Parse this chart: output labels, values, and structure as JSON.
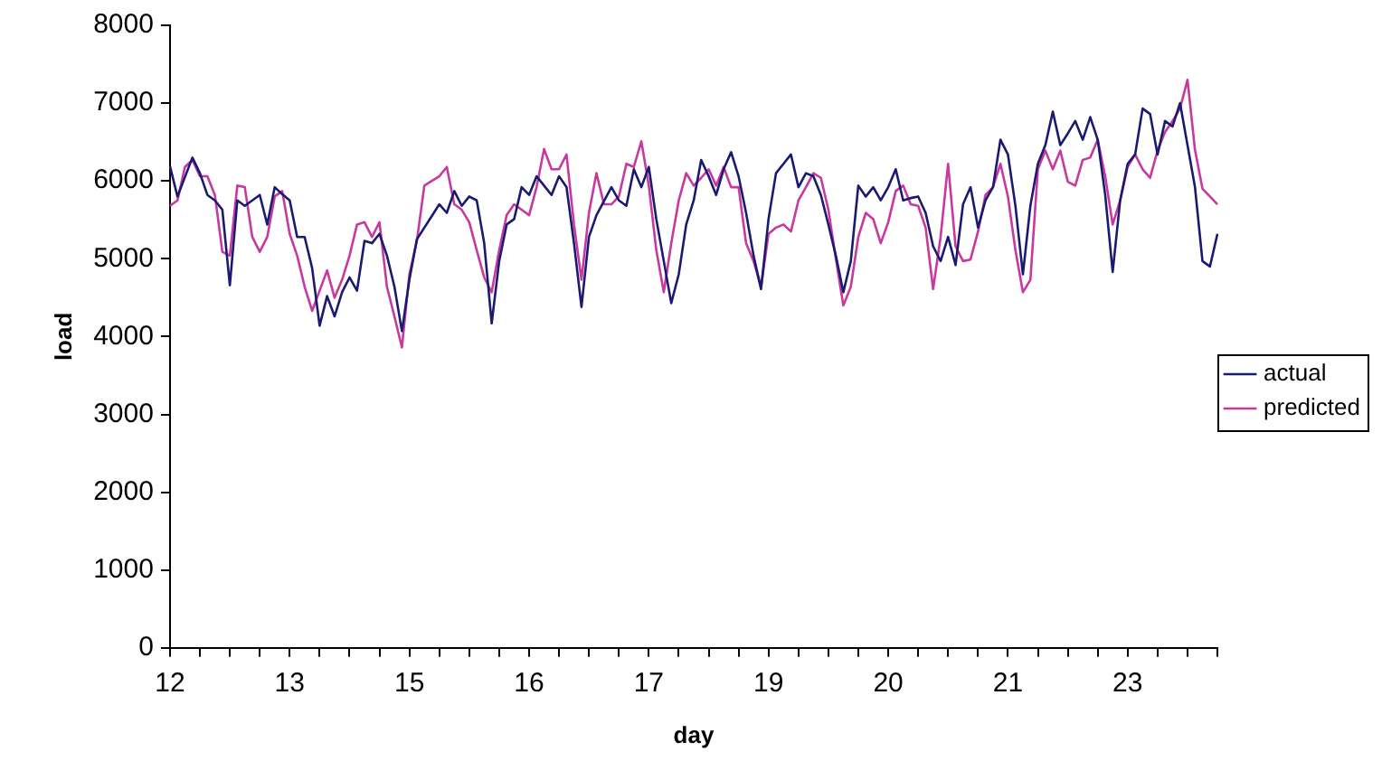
{
  "chart_data": {
    "type": "line",
    "xlabel": "day",
    "ylabel": "load",
    "legend": "right",
    "grid": false,
    "ylim": [
      0,
      8000
    ],
    "yticks": [
      0,
      1000,
      2000,
      3000,
      4000,
      5000,
      6000,
      7000,
      8000
    ],
    "categories": [
      "12",
      null,
      null,
      null,
      null,
      null,
      null,
      null,
      null,
      null,
      null,
      null,
      null,
      null,
      null,
      null,
      "13",
      null,
      null,
      null,
      null,
      null,
      null,
      null,
      null,
      null,
      null,
      null,
      null,
      null,
      null,
      null,
      "15",
      null,
      null,
      null,
      null,
      null,
      null,
      null,
      null,
      null,
      null,
      null,
      null,
      null,
      null,
      null,
      "16",
      null,
      null,
      null,
      null,
      null,
      null,
      null,
      null,
      null,
      null,
      null,
      null,
      null,
      null,
      null,
      "17",
      null,
      null,
      null,
      null,
      null,
      null,
      null,
      null,
      null,
      null,
      null,
      null,
      null,
      null,
      null,
      "19",
      null,
      null,
      null,
      null,
      null,
      null,
      null,
      null,
      null,
      null,
      null,
      null,
      null,
      null,
      null,
      "20",
      null,
      null,
      null,
      null,
      null,
      null,
      null,
      null,
      null,
      null,
      null,
      null,
      null,
      null,
      null,
      "21",
      null,
      null,
      null,
      null,
      null,
      null,
      null,
      null,
      null,
      null,
      null,
      null,
      null,
      null,
      null,
      "23",
      null,
      null,
      null,
      null,
      null,
      null,
      null,
      null,
      null,
      null,
      null,
      null
    ],
    "series": [
      {
        "name": "actual",
        "color": "#1a1a73",
        "values": [
          6190,
          5800,
          6050,
          6300,
          6100,
          5820,
          5750,
          5630,
          4660,
          5750,
          5680,
          5750,
          5820,
          5440,
          5920,
          5830,
          5750,
          5280,
          5280,
          4880,
          4140,
          4520,
          4260,
          4570,
          4760,
          4590,
          5230,
          5200,
          5320,
          5040,
          4640,
          4070,
          4730,
          5250,
          5400,
          5550,
          5700,
          5590,
          5870,
          5680,
          5800,
          5750,
          5200,
          4170,
          4970,
          5440,
          5510,
          5920,
          5820,
          6060,
          5940,
          5820,
          6060,
          5920,
          5200,
          4380,
          5280,
          5560,
          5740,
          5920,
          5750,
          5680,
          6150,
          5920,
          6180,
          5510,
          4970,
          4430,
          4800,
          5440,
          5750,
          6270,
          6060,
          5820,
          6150,
          6370,
          6060,
          5590,
          5040,
          4610,
          5510,
          6100,
          6220,
          6340,
          5920,
          6100,
          6060,
          5820,
          5440,
          5040,
          4570,
          4970,
          5940,
          5800,
          5920,
          5750,
          5920,
          6150,
          5750,
          5780,
          5800,
          5590,
          5160,
          4970,
          5280,
          4920,
          5700,
          5920,
          5400,
          5750,
          5920,
          6530,
          6340,
          5680,
          4800,
          5680,
          6220,
          6460,
          6890,
          6460,
          6610,
          6770,
          6530,
          6820,
          6530,
          5820,
          4830,
          5750,
          6220,
          6340,
          6930,
          6860,
          6340,
          6770,
          6700,
          7000,
          6460,
          5920,
          4970,
          4900,
          5320
        ]
      },
      {
        "name": "predicted",
        "color": "#c8399f",
        "values": [
          5680,
          5750,
          6180,
          6270,
          6060,
          6060,
          5820,
          5090,
          5040,
          5940,
          5920,
          5280,
          5090,
          5280,
          5800,
          5870,
          5320,
          5040,
          4640,
          4330,
          4590,
          4850,
          4500,
          4730,
          5040,
          5440,
          5470,
          5280,
          5470,
          4640,
          4260,
          3860,
          4800,
          5230,
          5940,
          6000,
          6060,
          6180,
          5700,
          5630,
          5470,
          5110,
          4760,
          4570,
          5110,
          5560,
          5700,
          5630,
          5560,
          5920,
          6410,
          6150,
          6150,
          6340,
          5440,
          4730,
          5590,
          6100,
          5700,
          5700,
          5800,
          6220,
          6180,
          6510,
          5940,
          5110,
          4570,
          5200,
          5750,
          6100,
          5940,
          6040,
          6150,
          5940,
          6180,
          5920,
          5920,
          5200,
          4970,
          4640,
          5320,
          5400,
          5440,
          5350,
          5750,
          5920,
          6100,
          6040,
          5630,
          5000,
          4400,
          4640,
          5280,
          5590,
          5510,
          5200,
          5470,
          5870,
          5940,
          5700,
          5680,
          5400,
          4610,
          5280,
          6220,
          5160,
          4970,
          4990,
          5350,
          5820,
          5920,
          6220,
          5800,
          5110,
          4570,
          4730,
          6150,
          6390,
          6150,
          6390,
          5990,
          5940,
          6270,
          6300,
          6530,
          6060,
          5440,
          5750,
          6180,
          6340,
          6150,
          6040,
          6390,
          6630,
          6770,
          6930,
          7300,
          6400,
          5900,
          5800,
          5700
        ]
      }
    ]
  }
}
